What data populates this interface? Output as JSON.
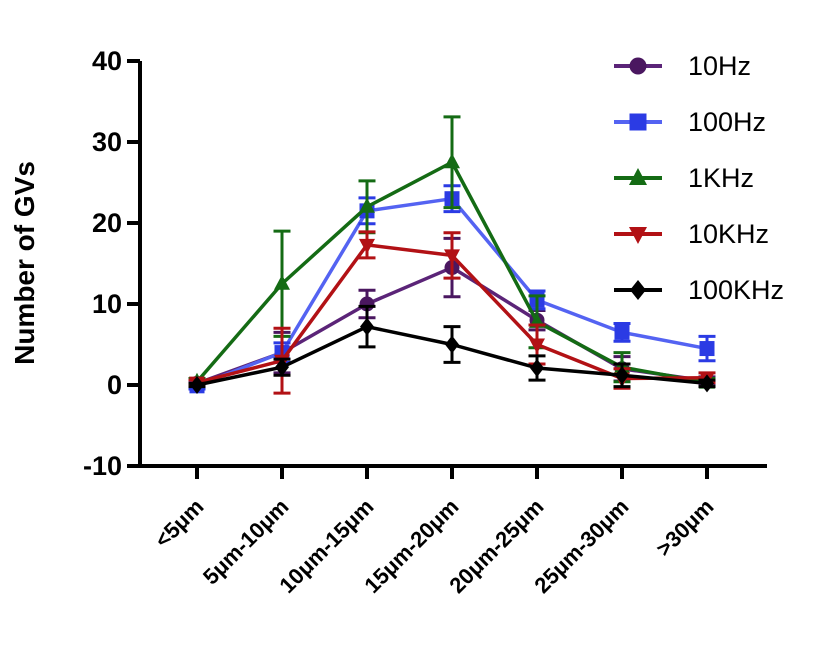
{
  "chart_data": {
    "type": "line",
    "title": "",
    "xlabel": "",
    "ylabel": "Number of GVs",
    "categories": [
      "<5μm",
      "5μm-10μm",
      "10μm-15μm",
      "15μm-20μm",
      "20μm-25μm",
      "25μm-30μm",
      ">30μm"
    ],
    "y_ticks": [
      -10,
      0,
      10,
      20,
      30,
      40
    ],
    "ylim": [
      -10,
      40
    ],
    "grid": false,
    "error_bars": true,
    "legend_position": "top-right",
    "axis_color": "#000000",
    "series": [
      {
        "name": "10Hz",
        "marker": "circle",
        "color": "#4A1760",
        "line_color": "#5B2478",
        "values": [
          0.2,
          4.0,
          10.0,
          14.5,
          8.0,
          2.0,
          0.5
        ],
        "errors": [
          0.3,
          2.5,
          1.7,
          3.6,
          1.2,
          1.5,
          0.5
        ]
      },
      {
        "name": "100Hz",
        "marker": "square",
        "color": "#2B3BE4",
        "line_color": "#5463F2",
        "values": [
          -0.1,
          4.0,
          21.5,
          23.0,
          10.5,
          6.5,
          4.5
        ],
        "errors": [
          0.4,
          1.2,
          1.6,
          1.6,
          1.1,
          1.1,
          1.5
        ]
      },
      {
        "name": "1KHz",
        "marker": "triangle-up",
        "color": "#146B14",
        "line_color": "#146B14",
        "values": [
          0.4,
          12.5,
          22.0,
          27.5,
          7.8,
          2.2,
          0.3
        ],
        "errors": [
          0.4,
          6.5,
          3.2,
          5.6,
          3.2,
          1.8,
          0.5
        ]
      },
      {
        "name": "10KHz",
        "marker": "triangle-down",
        "color": "#B21115",
        "line_color": "#B21115",
        "values": [
          0.3,
          3.0,
          17.3,
          16.0,
          5.0,
          0.8,
          0.9
        ],
        "errors": [
          0.3,
          4.0,
          1.6,
          2.8,
          2.4,
          1.2,
          0.6
        ]
      },
      {
        "name": "100KHz",
        "marker": "diamond",
        "color": "#000000",
        "line_color": "#000000",
        "values": [
          0.0,
          2.2,
          7.2,
          5.0,
          2.1,
          1.2,
          0.2
        ],
        "errors": [
          0.2,
          1.0,
          2.5,
          2.2,
          1.5,
          1.4,
          0.4
        ]
      }
    ]
  }
}
